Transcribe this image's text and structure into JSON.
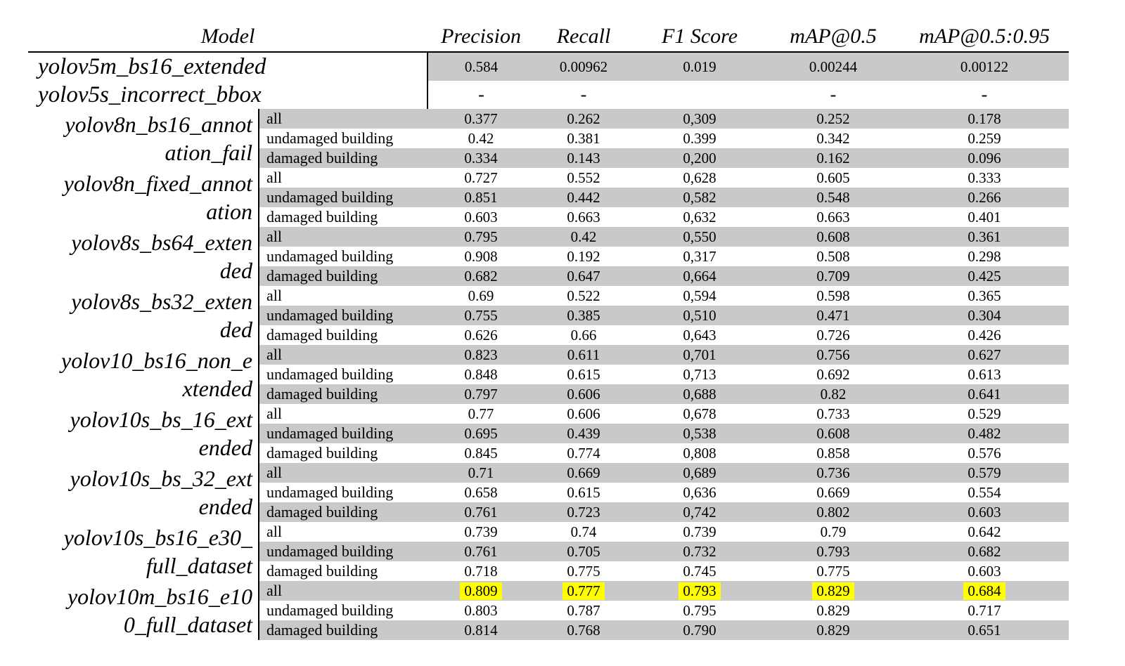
{
  "colors": {
    "row_shade": "#c9c9c9",
    "highlight": "#ffff00"
  },
  "header": {
    "model": "Model",
    "columns": [
      "Precision",
      "Recall",
      "F1 Score",
      "mAP@0.5",
      "mAP@0.5:0.95"
    ]
  },
  "scope_labels": [
    "all",
    "undamaged building",
    "damaged building"
  ],
  "groups": [
    {
      "name": "yolov5m_bs16_extended",
      "line1": "yolov5m_bs16_extended",
      "line2": "",
      "single": true,
      "rows": [
        {
          "label": "",
          "values": [
            "0.584",
            "0.00962",
            "0.019",
            "0.00244",
            "0.00122"
          ],
          "shaded": true
        }
      ]
    },
    {
      "name": "yolov5s_incorrect_bbox",
      "line1": "yolov5s_incorrect_bbox",
      "line2": "",
      "single": true,
      "rows": [
        {
          "label": "",
          "values": [
            "-",
            "-",
            "",
            "-",
            "-"
          ],
          "shaded": false,
          "dash": true
        }
      ]
    },
    {
      "name": "yolov8n_bs16_annotation_fail",
      "line1": "yolov8n_bs16_annot",
      "line2": "ation_fail",
      "single": false,
      "rows": [
        {
          "label": "all",
          "values": [
            "0.377",
            "0.262",
            "0,309",
            "0.252",
            "0.178"
          ],
          "shaded": true
        },
        {
          "label": "undamaged building",
          "values": [
            "0.42",
            "0.381",
            "0.399",
            "0.342",
            "0.259"
          ],
          "shaded": false
        },
        {
          "label": "damaged building",
          "values": [
            "0.334",
            "0.143",
            "0,200",
            "0.162",
            "0.096"
          ],
          "shaded": true
        }
      ]
    },
    {
      "name": "yolov8n_fixed_annotation",
      "line1": "yolov8n_fixed_annot",
      "line2": "ation",
      "single": false,
      "rows": [
        {
          "label": "all",
          "values": [
            "0.727",
            "0.552",
            "0,628",
            "0.605",
            "0.333"
          ],
          "shaded": false
        },
        {
          "label": "undamaged building",
          "values": [
            "0.851",
            "0.442",
            "0,582",
            "0.548",
            "0.266"
          ],
          "shaded": true
        },
        {
          "label": "damaged building",
          "values": [
            "0.603",
            "0.663",
            "0,632",
            "0.663",
            "0.401"
          ],
          "shaded": false
        }
      ]
    },
    {
      "name": "yolov8s_bs64_extended",
      "line1": "yolov8s_bs64_exten",
      "line2": "ded",
      "single": false,
      "rows": [
        {
          "label": "all",
          "values": [
            "0.795",
            "0.42",
            "0,550",
            "0.608",
            "0.361"
          ],
          "shaded": true
        },
        {
          "label": "undamaged building",
          "values": [
            "0.908",
            "0.192",
            "0,317",
            "0.508",
            "0.298"
          ],
          "shaded": false
        },
        {
          "label": "damaged building",
          "values": [
            "0.682",
            "0.647",
            "0,664",
            "0.709",
            "0.425"
          ],
          "shaded": true
        }
      ]
    },
    {
      "name": "yolov8s_bs32_extended",
      "line1": "yolov8s_bs32_exten",
      "line2": "ded",
      "single": false,
      "rows": [
        {
          "label": "all",
          "values": [
            "0.69",
            "0.522",
            "0,594",
            "0.598",
            "0.365"
          ],
          "shaded": false
        },
        {
          "label": "undamaged building",
          "values": [
            "0.755",
            "0.385",
            "0,510",
            "0.471",
            "0.304"
          ],
          "shaded": true
        },
        {
          "label": "damaged building",
          "values": [
            "0.626",
            "0.66",
            "0,643",
            "0.726",
            "0.426"
          ],
          "shaded": false
        }
      ]
    },
    {
      "name": "yolov10_bs16_non_extended",
      "line1": "yolov10_bs16_non_e",
      "line2": "xtended",
      "single": false,
      "rows": [
        {
          "label": "all",
          "values": [
            "0.823",
            "0.611",
            "0,701",
            "0.756",
            "0.627"
          ],
          "shaded": true
        },
        {
          "label": "undamaged building",
          "values": [
            "0.848",
            "0.615",
            "0,713",
            "0.692",
            "0.613"
          ],
          "shaded": false
        },
        {
          "label": "damaged building",
          "values": [
            "0.797",
            "0.606",
            "0,688",
            "0.82",
            "0.641"
          ],
          "shaded": true
        }
      ]
    },
    {
      "name": "yolov10s_bs_16_extended",
      "line1": "yolov10s_bs_16_ext",
      "line2": "ended",
      "single": false,
      "rows": [
        {
          "label": "all",
          "values": [
            "0.77",
            "0.606",
            "0,678",
            "0.733",
            "0.529"
          ],
          "shaded": false
        },
        {
          "label": "undamaged building",
          "values": [
            "0.695",
            "0.439",
            "0,538",
            "0.608",
            "0.482"
          ],
          "shaded": true
        },
        {
          "label": "damaged building",
          "values": [
            "0.845",
            "0.774",
            "0,808",
            "0.858",
            "0.576"
          ],
          "shaded": false
        }
      ]
    },
    {
      "name": "yolov10s_bs_32_extended",
      "line1": "yolov10s_bs_32_ext",
      "line2": "ended",
      "single": false,
      "rows": [
        {
          "label": "all",
          "values": [
            "0.71",
            "0.669",
            "0,689",
            "0.736",
            "0.579"
          ],
          "shaded": true
        },
        {
          "label": "undamaged building",
          "values": [
            "0.658",
            "0.615",
            "0,636",
            "0.669",
            "0.554"
          ],
          "shaded": false
        },
        {
          "label": "damaged building",
          "values": [
            "0.761",
            "0.723",
            "0,742",
            "0.802",
            "0.603"
          ],
          "shaded": true
        }
      ]
    },
    {
      "name": "yolov10s_bs16_e30_full_dataset",
      "line1": "yolov10s_bs16_e30_",
      "line2": "full_dataset",
      "single": false,
      "rows": [
        {
          "label": "all",
          "values": [
            "0.739",
            "0.74",
            "0.739",
            "0.79",
            "0.642"
          ],
          "shaded": false
        },
        {
          "label": "undamaged building",
          "values": [
            "0.761",
            "0.705",
            "0.732",
            "0.793",
            "0.682"
          ],
          "shaded": true
        },
        {
          "label": "damaged building",
          "values": [
            "0.718",
            "0.775",
            "0.745",
            "0.775",
            "0.603"
          ],
          "shaded": false
        }
      ]
    },
    {
      "name": "yolov10m_bs16_e100_full_dataset",
      "line1": "yolov10m_bs16_e10",
      "line2": "0_full_dataset",
      "single": false,
      "rows": [
        {
          "label": "all",
          "values": [
            "0.809",
            "0.777",
            "0.793",
            "0.829",
            "0.684"
          ],
          "shaded": true,
          "highlighted": true
        },
        {
          "label": "undamaged building",
          "values": [
            "0.803",
            "0.787",
            "0.795",
            "0.829",
            "0.717"
          ],
          "shaded": false
        },
        {
          "label": "damaged building",
          "values": [
            "0.814",
            "0.768",
            "0.790",
            "0.829",
            "0.651"
          ],
          "shaded": true
        }
      ]
    }
  ]
}
